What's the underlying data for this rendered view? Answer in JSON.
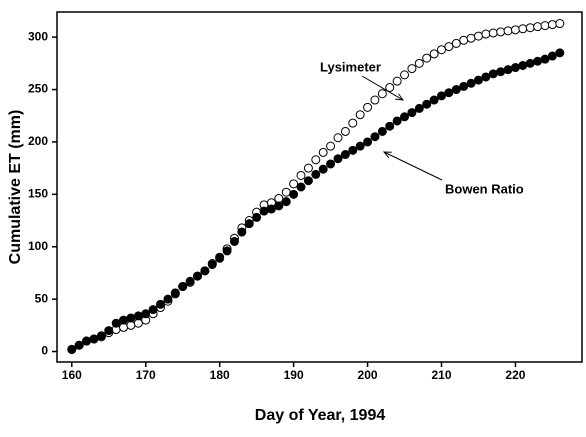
{
  "chart_data": {
    "type": "scatter",
    "xlabel": "Day of Year, 1994",
    "ylabel": "Cumulative ET (mm)",
    "x": [
      160,
      161,
      162,
      163,
      164,
      165,
      166,
      167,
      168,
      169,
      170,
      171,
      172,
      173,
      174,
      175,
      176,
      177,
      178,
      179,
      180,
      181,
      182,
      183,
      184,
      185,
      186,
      187,
      188,
      189,
      190,
      191,
      192,
      193,
      194,
      195,
      196,
      197,
      198,
      199,
      200,
      201,
      202,
      203,
      204,
      205,
      206,
      207,
      208,
      209,
      210,
      211,
      212,
      213,
      214,
      215,
      216,
      217,
      218,
      219,
      220,
      221,
      222,
      223,
      224,
      225,
      226
    ],
    "series": [
      {
        "name": "Lysimeter",
        "color": "#000000",
        "marker": "open",
        "values": [
          2,
          6,
          10,
          12,
          14,
          18,
          21,
          23,
          25,
          27,
          30,
          36,
          42,
          48,
          55,
          62,
          66,
          72,
          77,
          84,
          90,
          98,
          108,
          118,
          125,
          133,
          140,
          142,
          146,
          152,
          160,
          168,
          175,
          183,
          190,
          196,
          204,
          210,
          218,
          226,
          233,
          240,
          246,
          252,
          258,
          264,
          270,
          275,
          280,
          284,
          288,
          291,
          294,
          297,
          299,
          301,
          303,
          304,
          305,
          306,
          307,
          308,
          309,
          310,
          311,
          312,
          313
        ]
      },
      {
        "name": "Bowen Ratio",
        "color": "#000000",
        "marker": "filled",
        "values": [
          2,
          6,
          10,
          12,
          15,
          20,
          27,
          30,
          32,
          34,
          36,
          40,
          45,
          50,
          56,
          62,
          67,
          72,
          77,
          83,
          89,
          96,
          105,
          114,
          122,
          128,
          134,
          136,
          139,
          143,
          150,
          157,
          163,
          169,
          174,
          179,
          184,
          188,
          192,
          196,
          200,
          205,
          210,
          215,
          220,
          224,
          228,
          232,
          236,
          240,
          244,
          247,
          250,
          253,
          256,
          259,
          262,
          265,
          267,
          269,
          271,
          273,
          275,
          277,
          279,
          282,
          285
        ]
      }
    ],
    "xlim": [
      158,
      229
    ],
    "ylim": [
      -10,
      324
    ],
    "xticks": [
      160,
      170,
      180,
      190,
      200,
      210,
      220
    ],
    "yticks": [
      0,
      50,
      100,
      150,
      200,
      250,
      300
    ]
  }
}
